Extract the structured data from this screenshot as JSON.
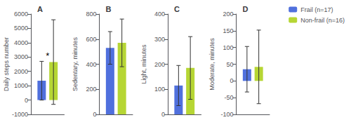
{
  "chart_data": [
    {
      "type": "bar",
      "title": "A",
      "ylabel": "Daily steps number",
      "categories": [
        null
      ],
      "series": [
        {
          "name": "Frail (n=17)",
          "values": [
            1350
          ],
          "error": [
            1350
          ]
        },
        {
          "name": "Non-frail (n=16)",
          "values": [
            2650
          ],
          "error": [
            2950
          ]
        }
      ],
      "ylim": [
        -1000,
        6000
      ],
      "yticks": [
        -1000,
        0,
        1000,
        2000,
        3000,
        4000,
        5000,
        6000
      ],
      "grid": false,
      "tick_labels": "y",
      "annotations": [
        {
          "text": "*",
          "y": 2750
        }
      ]
    },
    {
      "type": "bar",
      "title": "B",
      "ylabel": "Sedentary, minutes",
      "categories": [
        null
      ],
      "series": [
        {
          "name": "Frail (n=17)",
          "values": [
            530
          ],
          "error": [
            130
          ]
        },
        {
          "name": "Non-frail (n=16)",
          "values": [
            570
          ],
          "error": [
            190
          ]
        }
      ],
      "ylim": [
        0,
        800
      ],
      "yticks": [
        0,
        200,
        400,
        600,
        800
      ],
      "grid": false,
      "tick_labels": "y"
    },
    {
      "type": "bar",
      "title": "C",
      "ylabel": "Light, minutes",
      "categories": [
        null
      ],
      "series": [
        {
          "name": "Frail (n=17)",
          "values": [
            115
          ],
          "error": [
            80
          ]
        },
        {
          "name": "Non-frail (n=16)",
          "values": [
            185
          ],
          "error": [
            125
          ]
        }
      ],
      "ylim": [
        0,
        400
      ],
      "yticks": [
        0,
        100,
        200,
        300,
        400
      ],
      "grid": false,
      "tick_labels": "y"
    },
    {
      "type": "bar",
      "title": "D",
      "ylabel": "Moderate, minutes",
      "categories": [
        null
      ],
      "series": [
        {
          "name": "Frail (n=17)",
          "values": [
            35
          ],
          "error": [
            68
          ]
        },
        {
          "name": "Non-frail (n=16)",
          "values": [
            42
          ],
          "error": [
            110
          ]
        }
      ],
      "ylim": [
        -100,
        200
      ],
      "yticks": [
        -100,
        -50,
        0,
        50,
        100,
        150,
        200
      ],
      "grid": false,
      "tick_labels": "y",
      "legend": "upper right"
    }
  ]
}
